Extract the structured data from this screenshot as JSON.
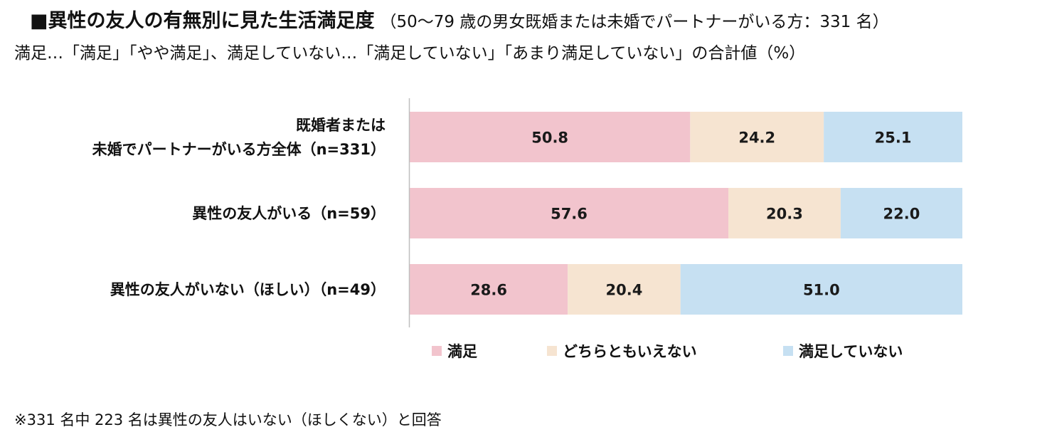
{
  "header": {
    "title": "■異性の友人の有無別に見た生活満足度",
    "title_note": "（50～79 歳の男女既婚または未婚でパートナーがいる方：331 名）",
    "subtitle": "満足…「満足」「やや満足」、満足していない…「満足していない」「あまり満足していない」の合計値（%）"
  },
  "chart_data": {
    "type": "bar",
    "orientation": "horizontal",
    "stacked": true,
    "stacked_100": true,
    "categories": [
      "既婚者または\n未婚でパートナーがいる方全体（n=331）",
      "異性の友人がいる（n=59）",
      "異性の友人がいない（ほしい）（n=49）"
    ],
    "series": [
      {
        "name": "満足",
        "color": "#f2c4cd",
        "values": [
          50.8,
          57.6,
          28.6
        ]
      },
      {
        "name": "どちらともいえない",
        "color": "#f6e4d1",
        "values": [
          24.2,
          20.3,
          20.4
        ]
      },
      {
        "name": "満足していない",
        "color": "#c6e0f2",
        "values": [
          25.1,
          22.0,
          51.0
        ]
      }
    ],
    "data_labels": [
      [
        "50.8",
        "24.2",
        "25.1"
      ],
      [
        "57.6",
        "20.3",
        "22.0"
      ],
      [
        "28.6",
        "20.4",
        "51.0"
      ]
    ],
    "legend_position": "bottom",
    "grid": false
  },
  "footnote": "※331 名中 223 名は異性の友人はいない（ほしくない）と回答"
}
